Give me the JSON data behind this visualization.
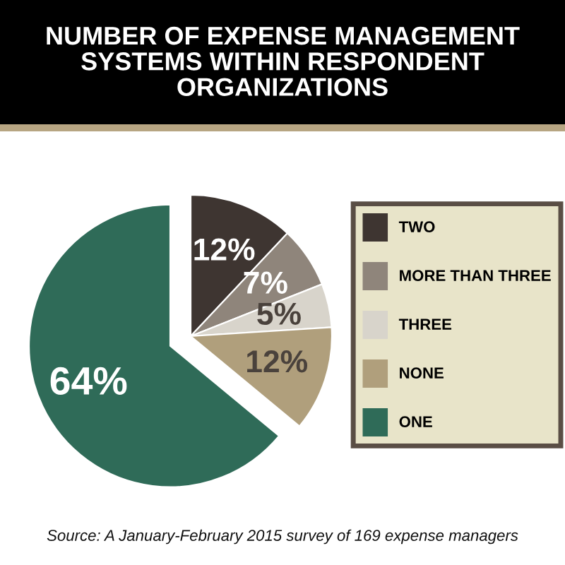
{
  "chart_data": {
    "type": "pie",
    "title": "NUMBER OF EXPENSE MANAGEMENT SYSTEMS WITHIN RESPONDENT ORGANIZATIONS",
    "categories": [
      "TWO",
      "MORE THAN THREE",
      "THREE",
      "NONE",
      "ONE"
    ],
    "values": [
      12,
      7,
      5,
      12,
      64
    ],
    "value_labels": [
      "12%",
      "7%",
      "5%",
      "12%",
      "64%"
    ],
    "colors": [
      "#3e3531",
      "#8f857b",
      "#d8d4cb",
      "#b09f7c",
      "#2f6b58"
    ],
    "legend": "right",
    "annotations": [
      "Source: A January-February 2015 survey of 169 expense managers"
    ]
  }
}
